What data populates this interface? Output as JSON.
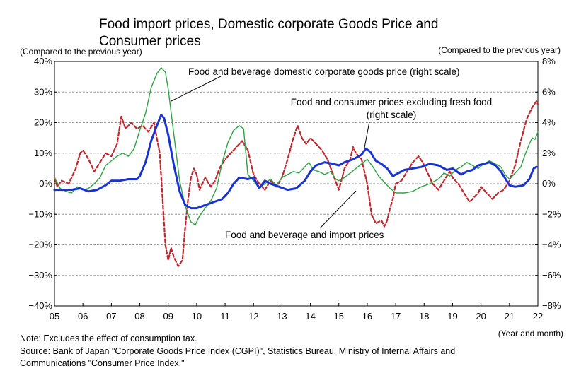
{
  "chart_data": {
    "type": "line",
    "title_line1": "Food import prices, Domestic corporate Goods Price and",
    "title_line2": "Consumer prices",
    "left_axis_caption": "(Compared to the previous year)",
    "right_axis_caption": "(Compared to the previous year)",
    "x_axis_caption": "(Year and month)",
    "note": "Note: Excludes the effect of consumption tax.",
    "source_line1": "Source: Bank of Japan \"Corporate Goods Price Index (CGPI)\", Statistics Bureau, Ministry of Internal Affairs and",
    "source_line2": "Communications \"Consumer Price Index.\"",
    "x_ticks": [
      "05",
      "06",
      "07",
      "08",
      "09",
      "10",
      "11",
      "12",
      "13",
      "14",
      "15",
      "16",
      "17",
      "18",
      "19",
      "20",
      "21",
      "22"
    ],
    "left_ticks": [
      "40%",
      "30%",
      "20%",
      "10%",
      "0%",
      "−10%",
      "−20%",
      "−30%",
      "−40%"
    ],
    "right_ticks": [
      "8%",
      "6%",
      "4%",
      "2%",
      "0%",
      "−2%",
      "−4%",
      "−6%",
      "−8%"
    ],
    "ylim_left": [
      -40,
      40
    ],
    "ylim_right": [
      -8,
      8
    ],
    "xlim": [
      2005.0,
      2022.0
    ],
    "grid": "horizontal dashed",
    "annotations": {
      "domestic": "Food and beverage domestic corporate goods price (right scale)",
      "cpi_line1": "Food and consumer prices excluding fresh food",
      "cpi_line2": "(right scale)",
      "import": "Food and beverage and import prices"
    },
    "series": [
      {
        "key": "import",
        "axis": "left",
        "color": "#c0262d",
        "style": "dashed",
        "points": [
          [
            2005.0,
            2
          ],
          [
            2005.1,
            -1
          ],
          [
            2005.25,
            1
          ],
          [
            2005.5,
            0
          ],
          [
            2005.75,
            5
          ],
          [
            2005.9,
            10
          ],
          [
            2006.0,
            11
          ],
          [
            2006.2,
            8
          ],
          [
            2006.4,
            4
          ],
          [
            2006.6,
            7
          ],
          [
            2006.8,
            10
          ],
          [
            2007.0,
            9
          ],
          [
            2007.2,
            13
          ],
          [
            2007.35,
            22
          ],
          [
            2007.5,
            18
          ],
          [
            2007.7,
            20
          ],
          [
            2007.9,
            18
          ],
          [
            2008.1,
            19
          ],
          [
            2008.3,
            17
          ],
          [
            2008.5,
            20
          ],
          [
            2008.6,
            15
          ],
          [
            2008.7,
            10
          ],
          [
            2008.8,
            -5
          ],
          [
            2008.9,
            -20
          ],
          [
            2009.0,
            -25
          ],
          [
            2009.1,
            -21
          ],
          [
            2009.2,
            -24
          ],
          [
            2009.35,
            -27
          ],
          [
            2009.5,
            -25
          ],
          [
            2009.6,
            -14
          ],
          [
            2009.7,
            -5
          ],
          [
            2009.8,
            2
          ],
          [
            2009.9,
            5
          ],
          [
            2010.0,
            3
          ],
          [
            2010.1,
            -2
          ],
          [
            2010.3,
            2
          ],
          [
            2010.5,
            -1
          ],
          [
            2010.65,
            1
          ],
          [
            2010.8,
            5
          ],
          [
            2011.0,
            8
          ],
          [
            2011.2,
            10
          ],
          [
            2011.4,
            12
          ],
          [
            2011.6,
            14
          ],
          [
            2011.8,
            11
          ],
          [
            2012.0,
            3
          ],
          [
            2012.2,
            0
          ],
          [
            2012.4,
            -2
          ],
          [
            2012.6,
            1
          ],
          [
            2012.8,
            -1
          ],
          [
            2013.0,
            2
          ],
          [
            2013.2,
            8
          ],
          [
            2013.4,
            15
          ],
          [
            2013.55,
            19
          ],
          [
            2013.7,
            15
          ],
          [
            2013.85,
            13
          ],
          [
            2014.0,
            15
          ],
          [
            2014.2,
            13
          ],
          [
            2014.4,
            11
          ],
          [
            2014.6,
            8
          ],
          [
            2014.8,
            3
          ],
          [
            2015.0,
            -2
          ],
          [
            2015.2,
            5
          ],
          [
            2015.4,
            8
          ],
          [
            2015.5,
            12
          ],
          [
            2015.6,
            10
          ],
          [
            2015.8,
            8
          ],
          [
            2016.0,
            0
          ],
          [
            2016.15,
            -10
          ],
          [
            2016.3,
            -13
          ],
          [
            2016.5,
            -12
          ],
          [
            2016.6,
            -14
          ],
          [
            2016.7,
            -12
          ],
          [
            2016.8,
            -8
          ],
          [
            2016.9,
            -5
          ],
          [
            2017.0,
            0
          ],
          [
            2017.2,
            1
          ],
          [
            2017.4,
            4
          ],
          [
            2017.6,
            7
          ],
          [
            2017.8,
            9
          ],
          [
            2017.95,
            7
          ],
          [
            2018.1,
            4
          ],
          [
            2018.3,
            0
          ],
          [
            2018.5,
            -2
          ],
          [
            2018.7,
            1
          ],
          [
            2018.9,
            4
          ],
          [
            2019.0,
            2
          ],
          [
            2019.2,
            0
          ],
          [
            2019.4,
            -3
          ],
          [
            2019.6,
            -6
          ],
          [
            2019.8,
            -4
          ],
          [
            2019.9,
            -3
          ],
          [
            2020.0,
            -1
          ],
          [
            2020.2,
            -3
          ],
          [
            2020.4,
            -5
          ],
          [
            2020.6,
            -3
          ],
          [
            2020.8,
            -2
          ],
          [
            2021.0,
            1
          ],
          [
            2021.2,
            6
          ],
          [
            2021.4,
            14
          ],
          [
            2021.6,
            21
          ],
          [
            2021.8,
            25
          ],
          [
            2021.95,
            27
          ],
          [
            2022.0,
            26
          ]
        ]
      },
      {
        "key": "domestic",
        "axis": "right",
        "color": "#2ea343",
        "style": "solid",
        "points": [
          [
            2005.0,
            0.4
          ],
          [
            2005.2,
            -0.3
          ],
          [
            2005.4,
            -0.5
          ],
          [
            2005.6,
            -0.6
          ],
          [
            2005.8,
            -0.2
          ],
          [
            2006.0,
            -0.4
          ],
          [
            2006.2,
            -0.3
          ],
          [
            2006.4,
            0.0
          ],
          [
            2006.6,
            0.4
          ],
          [
            2006.8,
            1.2
          ],
          [
            2007.0,
            1.5
          ],
          [
            2007.2,
            1.8
          ],
          [
            2007.4,
            2.0
          ],
          [
            2007.6,
            1.8
          ],
          [
            2007.8,
            2.3
          ],
          [
            2008.0,
            3.5
          ],
          [
            2008.2,
            4.6
          ],
          [
            2008.4,
            6.3
          ],
          [
            2008.6,
            7.2
          ],
          [
            2008.75,
            7.6
          ],
          [
            2008.9,
            7.3
          ],
          [
            2009.0,
            6.2
          ],
          [
            2009.2,
            3.2
          ],
          [
            2009.4,
            0.2
          ],
          [
            2009.6,
            -1.5
          ],
          [
            2009.8,
            -2.5
          ],
          [
            2009.95,
            -2.7
          ],
          [
            2010.1,
            -2.1
          ],
          [
            2010.3,
            -1.6
          ],
          [
            2010.5,
            -1.1
          ],
          [
            2010.7,
            -0.3
          ],
          [
            2010.9,
            1.4
          ],
          [
            2011.1,
            2.7
          ],
          [
            2011.3,
            3.5
          ],
          [
            2011.5,
            3.8
          ],
          [
            2011.65,
            3.6
          ],
          [
            2011.8,
            0.6
          ],
          [
            2012.0,
            0.2
          ],
          [
            2012.2,
            -0.3
          ],
          [
            2012.4,
            0.0
          ],
          [
            2012.6,
            0.3
          ],
          [
            2012.8,
            -0.1
          ],
          [
            2013.0,
            0.4
          ],
          [
            2013.2,
            0.6
          ],
          [
            2013.4,
            0.8
          ],
          [
            2013.6,
            0.7
          ],
          [
            2013.8,
            1.1
          ],
          [
            2013.95,
            1.4
          ],
          [
            2014.1,
            0.9
          ],
          [
            2014.3,
            0.8
          ],
          [
            2014.5,
            0.6
          ],
          [
            2014.7,
            0.8
          ],
          [
            2014.9,
            0.3
          ],
          [
            2015.0,
            0.2
          ],
          [
            2015.2,
            0.4
          ],
          [
            2015.4,
            0.7
          ],
          [
            2015.6,
            1.0
          ],
          [
            2015.8,
            1.3
          ],
          [
            2016.0,
            1.6
          ],
          [
            2016.2,
            1.1
          ],
          [
            2016.4,
            0.5
          ],
          [
            2016.6,
            0.1
          ],
          [
            2016.8,
            -0.3
          ],
          [
            2017.0,
            -0.6
          ],
          [
            2017.3,
            -0.6
          ],
          [
            2017.6,
            -0.5
          ],
          [
            2017.9,
            -0.2
          ],
          [
            2018.2,
            0.0
          ],
          [
            2018.5,
            0.3
          ],
          [
            2018.7,
            0.7
          ],
          [
            2018.9,
            0.5
          ],
          [
            2019.1,
            0.9
          ],
          [
            2019.3,
            1.1
          ],
          [
            2019.5,
            1.4
          ],
          [
            2019.7,
            1.2
          ],
          [
            2019.9,
            1.0
          ],
          [
            2020.1,
            1.3
          ],
          [
            2020.3,
            1.5
          ],
          [
            2020.5,
            1.3
          ],
          [
            2020.7,
            1.1
          ],
          [
            2020.85,
            0.6
          ],
          [
            2021.0,
            0.3
          ],
          [
            2021.2,
            0.7
          ],
          [
            2021.4,
            1.1
          ],
          [
            2021.55,
            1.9
          ],
          [
            2021.7,
            2.6
          ],
          [
            2021.8,
            3.0
          ],
          [
            2021.9,
            2.9
          ],
          [
            2022.0,
            3.4
          ]
        ]
      },
      {
        "key": "cpi",
        "axis": "right",
        "color": "#1a34d4",
        "style": "solid",
        "points": [
          [
            2005.0,
            -0.4
          ],
          [
            2005.3,
            -0.4
          ],
          [
            2005.6,
            -0.4
          ],
          [
            2005.9,
            -0.3
          ],
          [
            2006.2,
            -0.5
          ],
          [
            2006.5,
            -0.4
          ],
          [
            2006.8,
            -0.1
          ],
          [
            2007.0,
            0.2
          ],
          [
            2007.3,
            0.2
          ],
          [
            2007.6,
            0.3
          ],
          [
            2007.9,
            0.3
          ],
          [
            2008.0,
            0.5
          ],
          [
            2008.2,
            1.4
          ],
          [
            2008.4,
            2.8
          ],
          [
            2008.6,
            3.8
          ],
          [
            2008.75,
            4.5
          ],
          [
            2008.85,
            4.3
          ],
          [
            2009.0,
            3.2
          ],
          [
            2009.2,
            1.2
          ],
          [
            2009.4,
            -0.5
          ],
          [
            2009.6,
            -1.4
          ],
          [
            2009.8,
            -1.6
          ],
          [
            2010.0,
            -1.6
          ],
          [
            2010.3,
            -1.4
          ],
          [
            2010.6,
            -1.2
          ],
          [
            2010.9,
            -1.0
          ],
          [
            2011.1,
            -0.6
          ],
          [
            2011.3,
            0.0
          ],
          [
            2011.5,
            0.4
          ],
          [
            2011.8,
            0.3
          ],
          [
            2012.0,
            0.4
          ],
          [
            2012.2,
            -0.3
          ],
          [
            2012.4,
            0.2
          ],
          [
            2012.6,
            0.0
          ],
          [
            2012.9,
            -0.2
          ],
          [
            2013.2,
            -0.4
          ],
          [
            2013.5,
            -0.3
          ],
          [
            2013.8,
            0.2
          ],
          [
            2014.0,
            0.8
          ],
          [
            2014.2,
            1.2
          ],
          [
            2014.5,
            1.4
          ],
          [
            2014.8,
            1.3
          ],
          [
            2015.0,
            1.2
          ],
          [
            2015.2,
            1.4
          ],
          [
            2015.5,
            1.6
          ],
          [
            2015.8,
            1.9
          ],
          [
            2015.95,
            2.3
          ],
          [
            2016.1,
            2.1
          ],
          [
            2016.3,
            1.5
          ],
          [
            2016.5,
            1.3
          ],
          [
            2016.7,
            1.0
          ],
          [
            2016.9,
            0.5
          ],
          [
            2017.0,
            0.6
          ],
          [
            2017.3,
            0.9
          ],
          [
            2017.6,
            1.0
          ],
          [
            2017.9,
            1.1
          ],
          [
            2018.2,
            1.3
          ],
          [
            2018.5,
            1.2
          ],
          [
            2018.8,
            0.9
          ],
          [
            2019.0,
            1.0
          ],
          [
            2019.3,
            0.6
          ],
          [
            2019.5,
            0.8
          ],
          [
            2019.7,
            0.9
          ],
          [
            2019.9,
            1.2
          ],
          [
            2020.1,
            1.3
          ],
          [
            2020.3,
            1.4
          ],
          [
            2020.5,
            1.2
          ],
          [
            2020.7,
            0.8
          ],
          [
            2020.9,
            0.2
          ],
          [
            2021.0,
            -0.1
          ],
          [
            2021.2,
            -0.2
          ],
          [
            2021.5,
            -0.1
          ],
          [
            2021.7,
            0.3
          ],
          [
            2021.85,
            1.0
          ],
          [
            2021.95,
            1.1
          ]
        ]
      }
    ]
  }
}
